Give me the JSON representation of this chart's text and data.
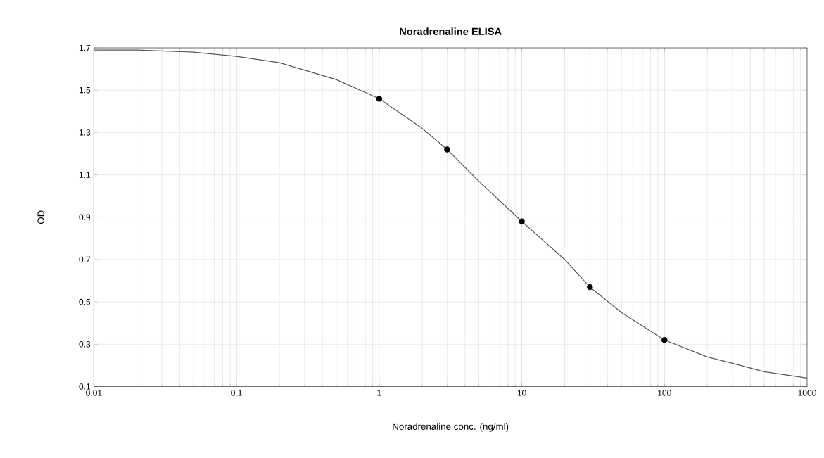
{
  "chart_data": {
    "type": "scatter",
    "title": "Noradrenaline ELISA",
    "xlabel": "Noradrenaline conc. (ng/ml)",
    "ylabel": "OD",
    "log": "x",
    "grid": true,
    "xlim": [
      0.01,
      1000
    ],
    "ylim": [
      0.1,
      1.7
    ],
    "xticks": [
      0.01,
      0.1,
      1,
      10,
      100,
      1000
    ],
    "yticks": [
      0.1,
      0.3,
      0.5,
      0.7,
      0.9,
      1.1,
      1.3,
      1.5,
      1.7
    ],
    "series": [
      {
        "type": "line",
        "color": "#555555",
        "marker": "none",
        "line_style": "solid",
        "x": [
          0.01,
          0.02,
          0.05,
          0.1,
          0.2,
          0.5,
          1,
          2,
          3,
          5,
          10,
          20,
          30,
          50,
          100,
          200,
          300,
          500,
          1000
        ],
        "values": [
          1.69,
          1.69,
          1.68,
          1.66,
          1.63,
          1.55,
          1.46,
          1.32,
          1.22,
          1.07,
          0.88,
          0.7,
          0.57,
          0.45,
          0.32,
          0.24,
          0.21,
          0.17,
          0.14
        ]
      },
      {
        "color": "#000000",
        "marker": "circle",
        "x": [
          1,
          3,
          10,
          30,
          100
        ],
        "values": [
          1.46,
          1.22,
          0.88,
          0.57,
          0.32
        ]
      }
    ]
  }
}
